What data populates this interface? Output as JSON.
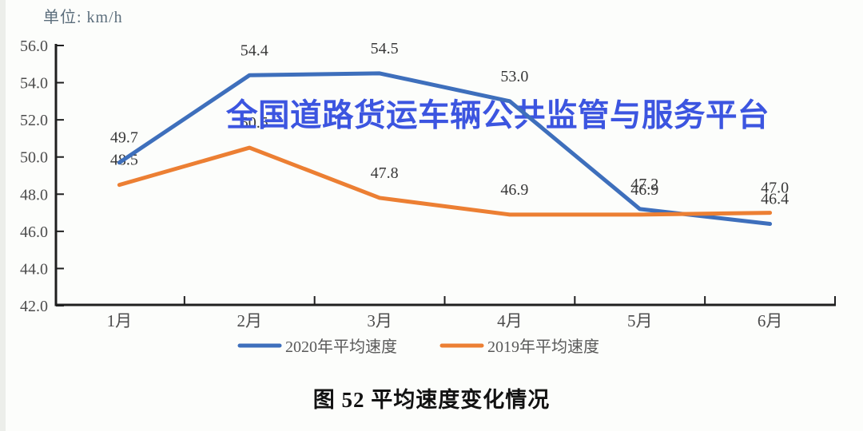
{
  "page": {
    "background": "#fcfdfb"
  },
  "chart_data": {
    "type": "line",
    "title": "图 52 平均速度变化情况",
    "unit_label": "单位: km/h",
    "watermark": "全国道路货运车辆公共监管与服务平台",
    "watermark_color": "#3c55e0",
    "categories": [
      "1月",
      "2月",
      "3月",
      "4月",
      "5月",
      "6月"
    ],
    "series": [
      {
        "name": "2020年平均速度",
        "color": "#3e6fbc",
        "values": [
          49.7,
          54.4,
          54.5,
          53.0,
          47.2,
          46.4
        ]
      },
      {
        "name": "2019年平均速度",
        "color": "#ec7f33",
        "values": [
          48.5,
          50.5,
          47.8,
          46.9,
          46.9,
          47.0
        ]
      }
    ],
    "ylim": [
      42.0,
      56.0
    ],
    "ytick_labels": [
      "56.0",
      "54.0",
      "52.0",
      "50.0",
      "48.0",
      "46.0",
      "44.0",
      "42.0"
    ],
    "xlabel": "",
    "ylabel": "km/h",
    "grid": false,
    "legend_position": "bottom",
    "axis_color": "#1f1f1f",
    "tick_label_color": "#4c4c4c",
    "data_label_color": "#383838",
    "legend_text_color": "#595959"
  }
}
